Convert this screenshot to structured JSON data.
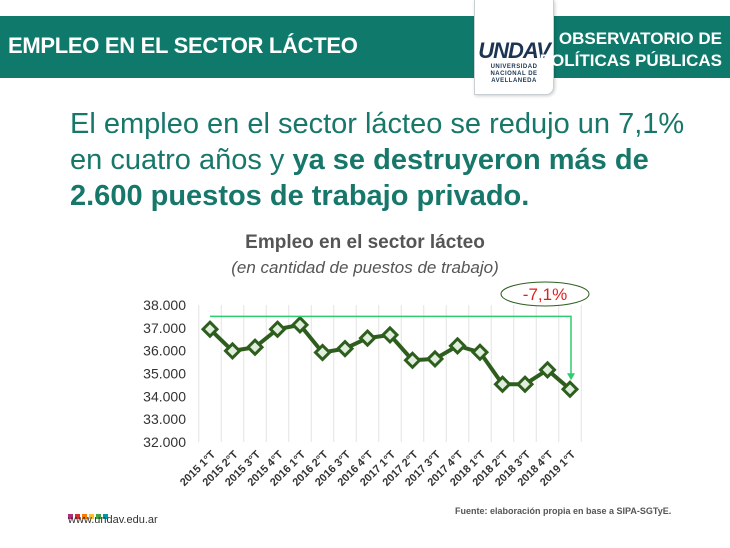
{
  "header": {
    "title": "EMPLEO EN EL SECTOR LÁCTEO",
    "logo_mark": "UNDAV",
    "logo_sub": [
      "UNIVERSIDAD",
      "NACIONAL DE",
      "AVELLANEDA"
    ],
    "observatorio": [
      "OBSERVATORIO DE",
      "POLÍTICAS PÚBLICAS"
    ]
  },
  "headline": {
    "normal": "El empleo en el sector lácteo se redujo un 7,1% en cuatro años y ",
    "bold": "ya se destruyeron más de 2.600 puestos de trabajo privado."
  },
  "chart_data": {
    "type": "line",
    "title": "Empleo en el sector lácteo",
    "subtitle": "(en cantidad de puestos de trabajo)",
    "categories": [
      "2015 1°T",
      "2015 2°T",
      "2015 3°T",
      "2015 4°T",
      "2016 1°T",
      "2016 2°T",
      "2016 3°T",
      "2016 4°T",
      "2017 1°T",
      "2017 2°T",
      "2017 3°T",
      "2017 4°T",
      "2018 1°T",
      "2018 2°T",
      "2018 3°T",
      "2018 4°T",
      "2019 1°T"
    ],
    "values": [
      36940,
      35990,
      36150,
      36940,
      37130,
      35920,
      36090,
      36550,
      36690,
      35580,
      35640,
      36210,
      35930,
      34530,
      34530,
      35160,
      34310
    ],
    "yticks": [
      "32.000",
      "33.000",
      "34.000",
      "35.000",
      "36.000",
      "37.000",
      "38.000"
    ],
    "ylim": [
      32000,
      38000
    ],
    "annotation": "-7,1%",
    "line_color": "#2e5e1e",
    "arrow_color": "#2ecc71",
    "annotation_color": "#e02020"
  },
  "footer": {
    "url": "www.undav.edu.ar",
    "source": "Fuente: elaboración propia en base a SIPA-SGTyE.",
    "dot_colors": [
      "#b0307a",
      "#d32f2f",
      "#f57c00",
      "#fbc02d",
      "#43a047",
      "#0097a7"
    ]
  }
}
